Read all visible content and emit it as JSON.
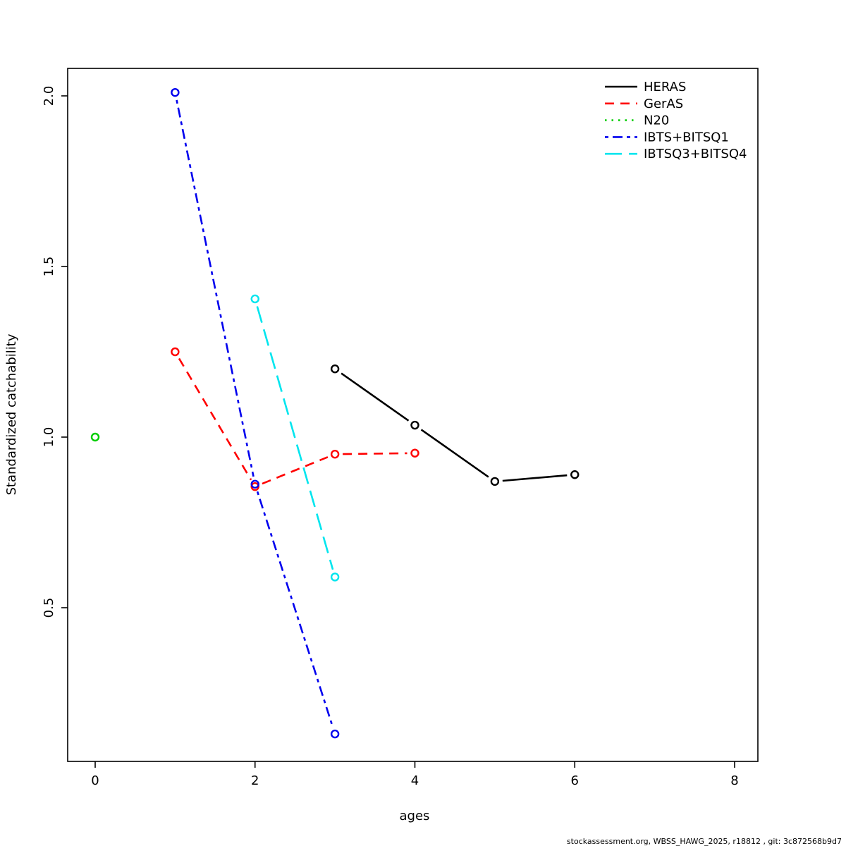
{
  "chart_data": {
    "type": "line",
    "title": "",
    "xlabel": "ages",
    "ylabel": "Standardized catchability",
    "xlim": [
      -0.34,
      8.29
    ],
    "ylim": [
      0.05,
      2.08
    ],
    "xticks": [
      0,
      2,
      4,
      6,
      8
    ],
    "yticks": [
      0.5,
      1.0,
      1.5,
      2.0
    ],
    "grid": false,
    "point_style": "open-circle",
    "legend": {
      "position": "top-right",
      "entries": [
        "HERAS",
        "GerAS",
        "N20",
        "IBTS+BITSQ1",
        "IBTSQ3+BITSQ4"
      ]
    },
    "series": [
      {
        "name": "HERAS",
        "color": "#000000",
        "linetype": "solid",
        "x": [
          3,
          4,
          5,
          6
        ],
        "y": [
          1.2,
          1.035,
          0.87,
          0.89
        ]
      },
      {
        "name": "GerAS",
        "color": "#FF0000",
        "linetype": "dashed",
        "x": [
          1,
          2,
          3,
          4
        ],
        "y": [
          1.25,
          0.855,
          0.95,
          0.953
        ]
      },
      {
        "name": "N20",
        "color": "#00CD00",
        "linetype": "dotted",
        "x": [
          0
        ],
        "y": [
          1.0
        ]
      },
      {
        "name": "IBTS+BITSQ1",
        "color": "#0000EE",
        "linetype": "dotdash",
        "x": [
          1,
          2,
          3
        ],
        "y": [
          2.01,
          0.862,
          0.13
        ]
      },
      {
        "name": "IBTSQ3+BITSQ4",
        "color": "#00E5EE",
        "linetype": "longdash",
        "x": [
          2,
          3
        ],
        "y": [
          1.405,
          0.59
        ]
      }
    ],
    "footer": "stockassessment.org, WBSS_HAWG_2025, r18812 , git: 3c872568b9d7"
  }
}
